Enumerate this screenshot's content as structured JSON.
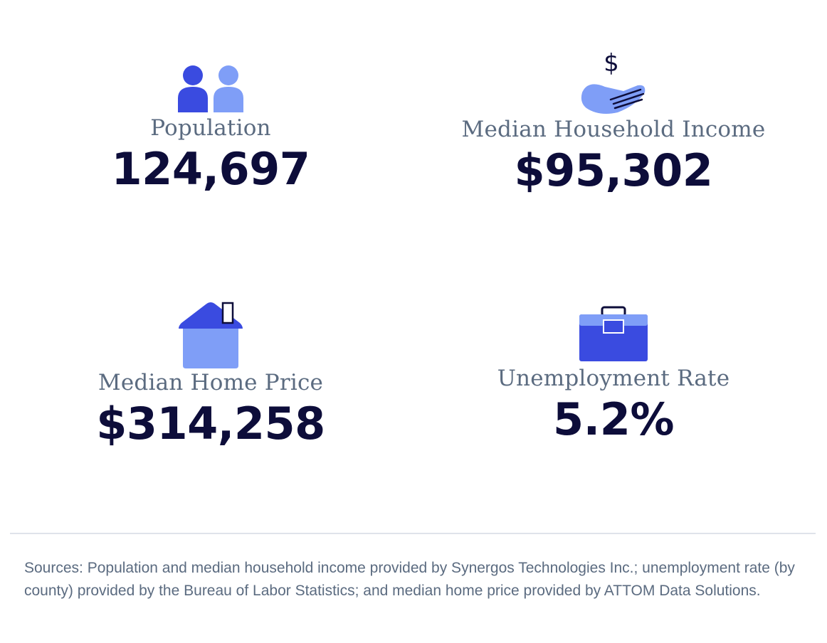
{
  "colors": {
    "accent_dark": "#3a4be0",
    "accent_light": "#7f9ef7",
    "value_text": "#0d0d3a",
    "label_text": "#5b6b80"
  },
  "stats": [
    {
      "icon": "people-icon",
      "label": "Population",
      "value": "124,697"
    },
    {
      "icon": "hand-dollar-icon",
      "label": "Median Household Income",
      "value": "$95,302"
    },
    {
      "icon": "house-icon",
      "label": "Median Home Price",
      "value": "$314,258"
    },
    {
      "icon": "briefcase-icon",
      "label": "Unemployment Rate",
      "value": "5.2%"
    }
  ],
  "sources": "Sources: Population and median household income provided by Synergos Technologies Inc.; unemployment rate (by county) provided by the Bureau of Labor Statistics; and median home price provided by ATTOM Data Solutions."
}
